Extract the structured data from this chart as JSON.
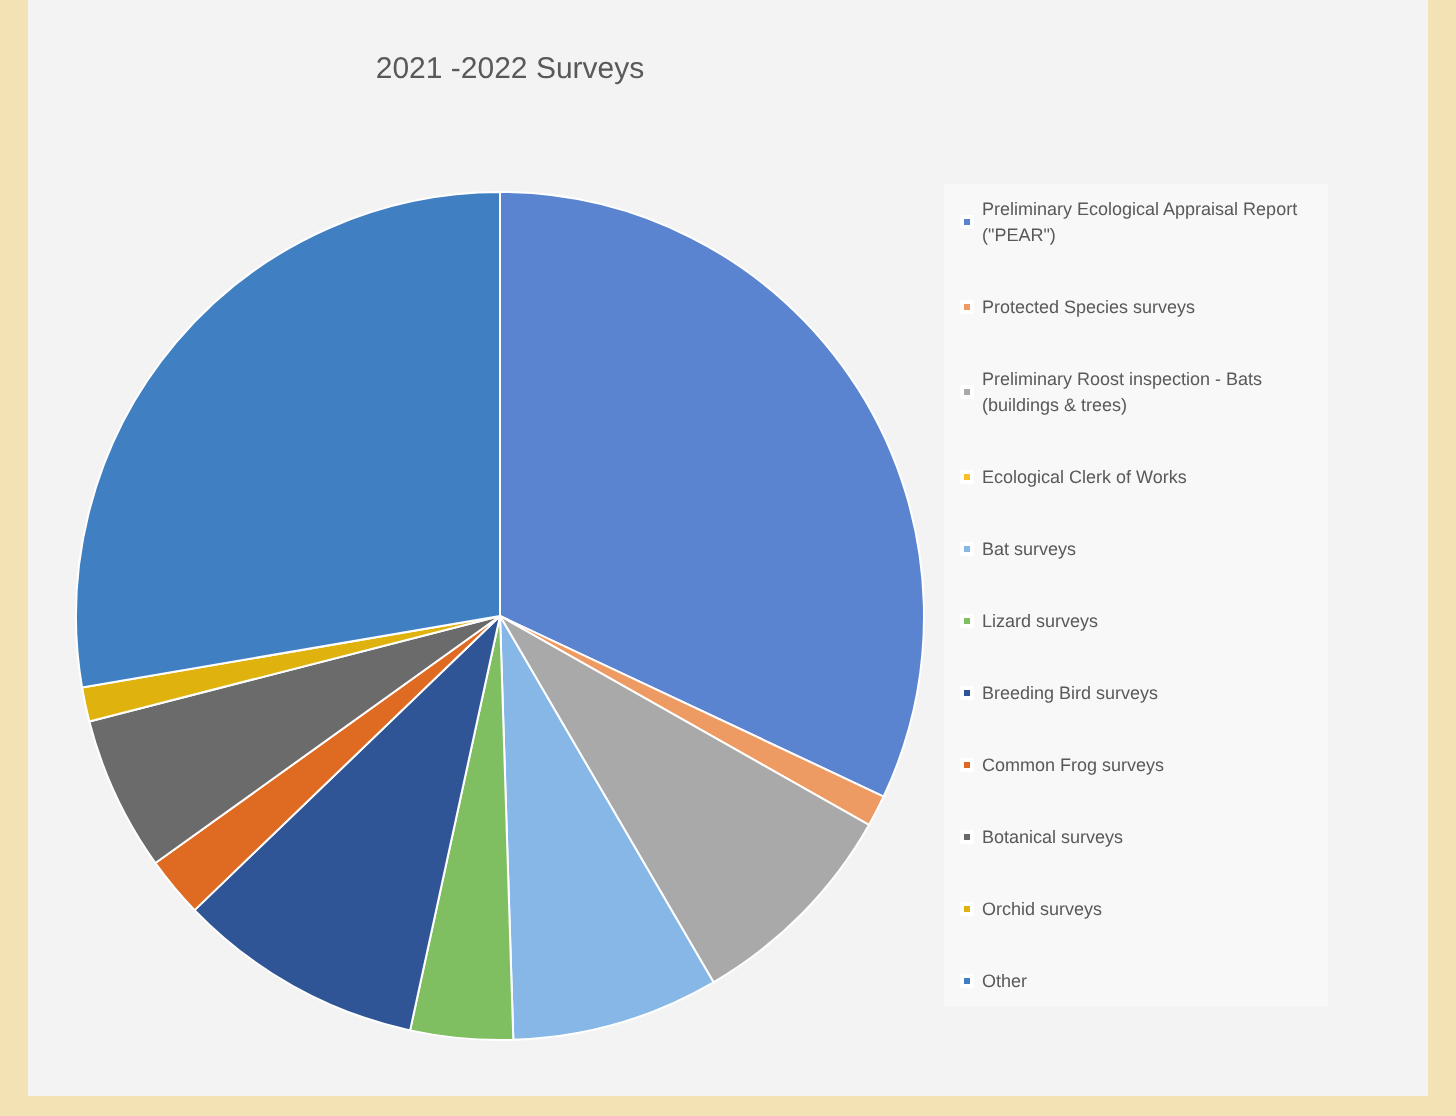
{
  "chart_data": {
    "type": "pie",
    "title": "2021 -2022 Surveys",
    "categories": [
      "Preliminary Ecological Appraisal Report (\"PEAR\")",
      "Protected Species surveys",
      "Preliminary Roost inspection - Bats (buildings & trees)",
      "Ecological Clerk of Works",
      "Bat surveys",
      "Lizard surveys",
      "Breeding Bird surveys",
      "Common Frog surveys",
      "Botanical surveys",
      "Orchid surveys",
      "Other"
    ],
    "values": [
      32,
      1.2,
      8.4,
      null,
      7.9,
      3.9,
      9.4,
      2.3,
      5.9,
      1.3,
      27.7
    ],
    "colors": [
      "#5a84cf",
      "#ee9a63",
      "#a9a9a9",
      "#f5c02a",
      "#86b7e6",
      "#7fbf62",
      "#2f5597",
      "#df6a22",
      "#6b6b6b",
      "#e0b20e",
      "#3f7fc2"
    ],
    "legend": "right"
  }
}
